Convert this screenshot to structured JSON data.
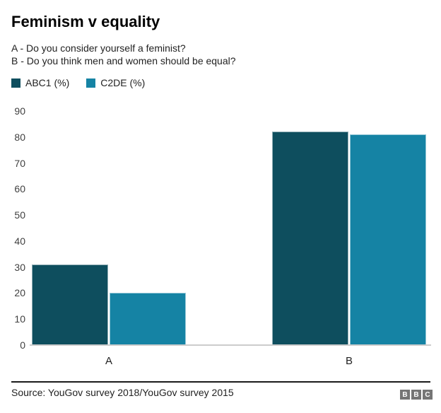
{
  "header": {
    "title": "Feminism v equality",
    "subtitle_lines": [
      "A - Do you consider yourself a feminist?",
      "B - Do you think men and women should be equal?"
    ]
  },
  "legend": {
    "items": [
      {
        "label": "ABC1 (%)",
        "color": "#0e4e5e"
      },
      {
        "label": "C2DE (%)",
        "color": "#1583a4"
      }
    ]
  },
  "chart_data": {
    "type": "bar",
    "title": "Feminism v equality",
    "categories": [
      "A",
      "B"
    ],
    "series": [
      {
        "name": "ABC1 (%)",
        "color": "#0e4e5e",
        "values": [
          31,
          82
        ]
      },
      {
        "name": "C2DE (%)",
        "color": "#1583a4",
        "values": [
          20,
          81
        ]
      }
    ],
    "xlabel": "",
    "ylabel": "",
    "ylim": [
      0,
      90
    ],
    "yticks": [
      0,
      10,
      20,
      30,
      40,
      50,
      60,
      70,
      80,
      90
    ],
    "grid": false,
    "legend_position": "top-left",
    "baseline_color": "#cccccc"
  },
  "footer": {
    "source": "Source: YouGov survey 2018/YouGov survey 2015",
    "logo_letters": [
      "B",
      "B",
      "C"
    ]
  }
}
